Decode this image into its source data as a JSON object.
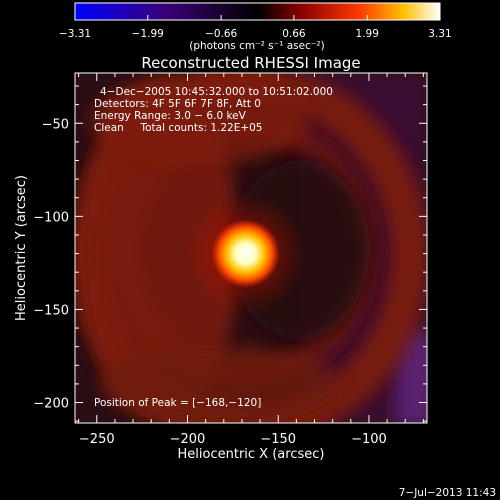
{
  "chart_data": {
    "type": "heatmap",
    "title": "Reconstructed RHESSI Image",
    "xlabel": "Heliocentric X (arcsec)",
    "ylabel": "Heliocentric Y (arcsec)",
    "xlim": [
      -262,
      -68
    ],
    "ylim": [
      -211,
      -23
    ],
    "x_ticks": [
      -250,
      -200,
      -150,
      -100
    ],
    "y_ticks": [
      -50,
      -100,
      -150,
      -200
    ],
    "x_tick_labels": [
      "−250",
      "−200",
      "−150",
      "−100"
    ],
    "y_tick_labels": [
      "−50",
      "−100",
      "−150",
      "−200"
    ],
    "peak": {
      "x": -168,
      "y": -120
    },
    "colorbar": {
      "min": -3.31,
      "max": 3.31,
      "ticks": [
        -3.31,
        -1.99,
        -0.66,
        0.66,
        1.99,
        3.31
      ],
      "tick_labels": [
        "−3.31",
        "−1.99",
        "−0.66",
        "0.66",
        "1.99",
        "3.31"
      ],
      "units_label": "(photons cm⁻² s⁻¹ asec⁻²)",
      "colors": [
        "#0000ff",
        "#400080",
        "#000000",
        "#800000",
        "#ff4000",
        "#ffc000",
        "#ffffff"
      ]
    },
    "annotations": [
      "4−Dec−2005 10:45:32.000 to 10:51:02.000",
      "Detectors: 4F 5F 6F 7F 8F, Att 0",
      "Energy Range: 3.0 − 6.0 keV",
      "Clean     Total counts: 1.22E+05"
    ],
    "peak_label": "Position of Peak = [−168,−120]"
  },
  "footer": {
    "timestamp": "7−Jul−2013 11:43"
  }
}
